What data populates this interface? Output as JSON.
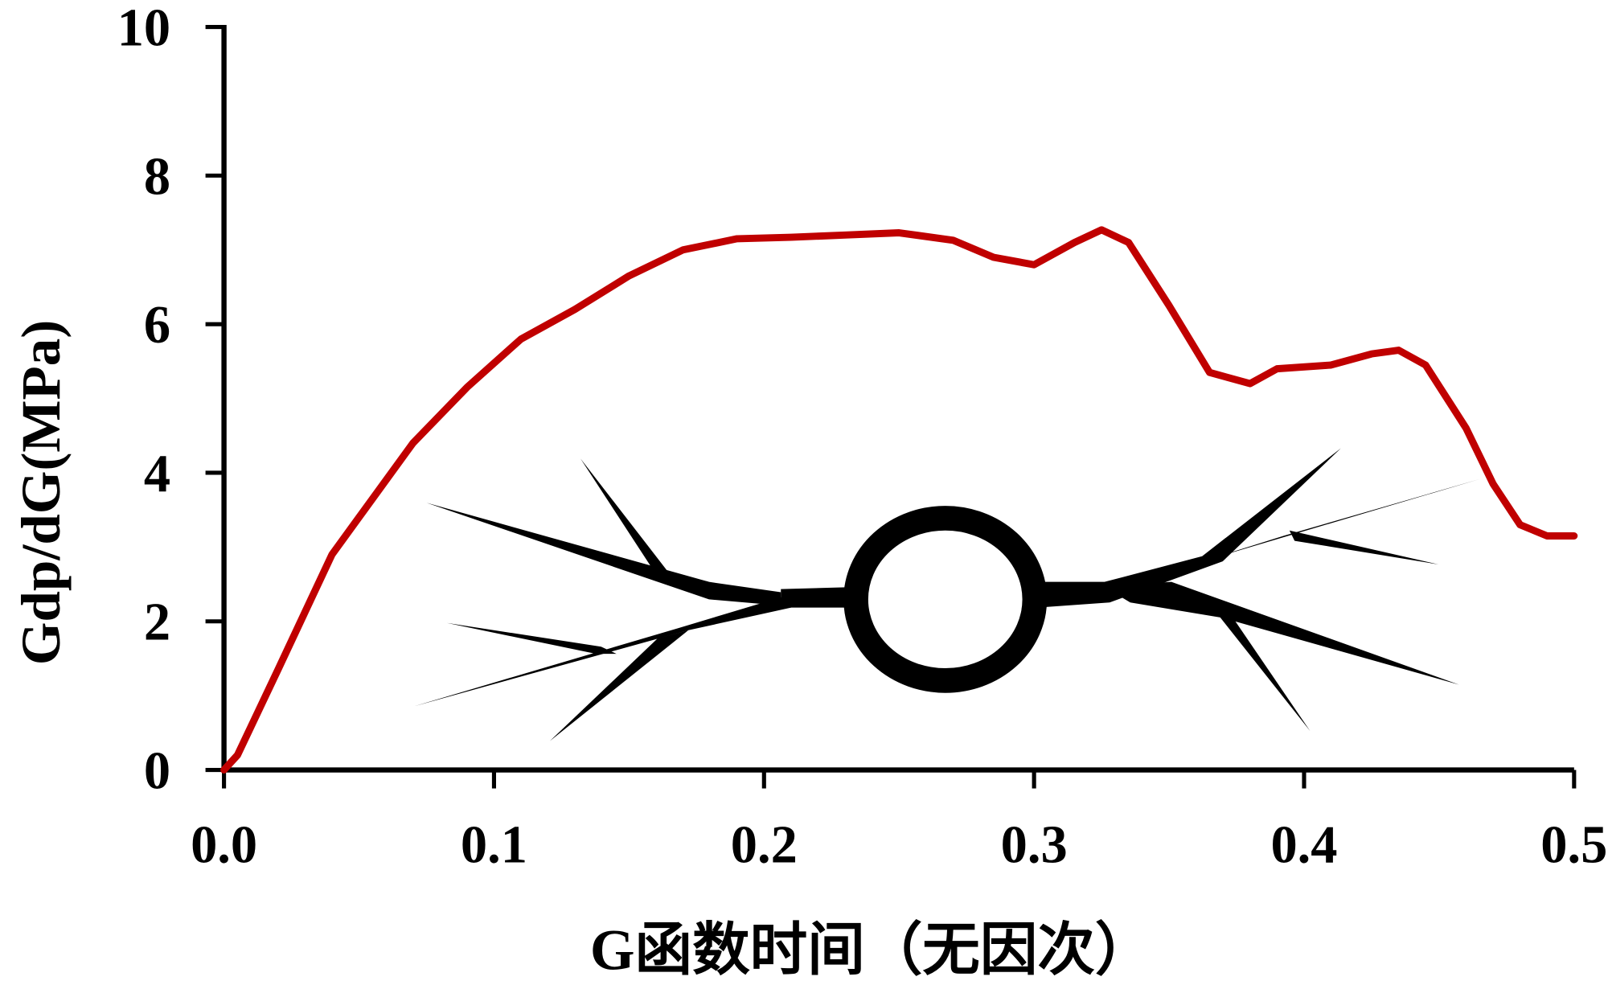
{
  "chart_data": {
    "type": "line",
    "x_label": "G函数时间（无因次）",
    "y_label": "Gdp/dG(MPa)",
    "xlim": [
      0,
      0.5
    ],
    "ylim": [
      0,
      10
    ],
    "xticks": [
      {
        "value": 0,
        "label": "0.0"
      },
      0.1,
      0.2,
      0.3,
      0.4,
      0.5
    ],
    "yticks": [
      0,
      2,
      4,
      6,
      8,
      10
    ],
    "series": [
      {
        "color": "#c00000",
        "x": [
          0,
          0.005,
          0.02,
          0.04,
          0.05,
          0.07,
          0.09,
          0.11,
          0.13,
          0.15,
          0.17,
          0.19,
          0.21,
          0.23,
          0.25,
          0.27,
          0.285,
          0.3,
          0.315,
          0.325,
          0.335,
          0.35,
          0.365,
          0.38,
          0.39,
          0.41,
          0.425,
          0.435,
          0.445,
          0.46,
          0.47,
          0.48,
          0.49,
          0.5
        ],
        "values": [
          0,
          0.2,
          1.35,
          2.9,
          3.4,
          4.4,
          5.15,
          5.8,
          6.2,
          6.65,
          7.0,
          7.15,
          7.17,
          7.2,
          7.23,
          7.13,
          6.9,
          6.8,
          7.1,
          7.27,
          7.1,
          6.25,
          5.35,
          5.2,
          5.4,
          5.45,
          5.6,
          5.65,
          5.45,
          4.6,
          3.85,
          3.3,
          3.15,
          3.15
        ]
      }
    ]
  }
}
